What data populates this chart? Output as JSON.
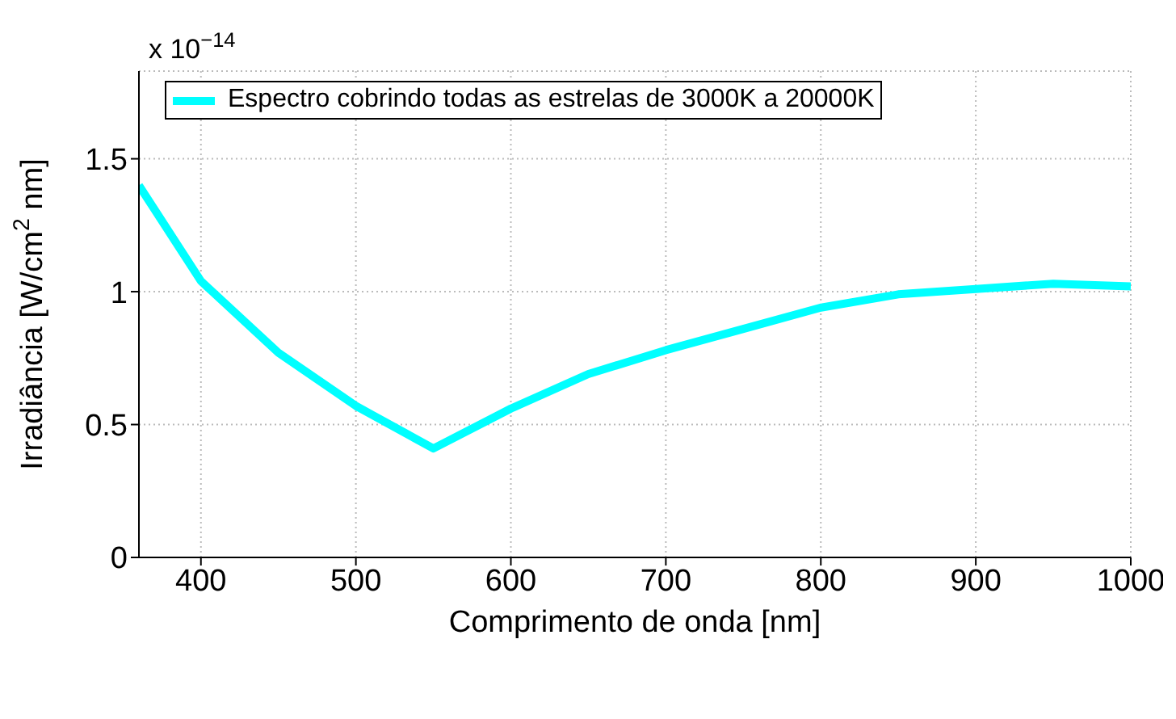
{
  "chart_data": {
    "type": "line",
    "xlabel": "Comprimento de onda [nm]",
    "ylabel": "Irradiância [W/cm$^{2}$ nm]",
    "annotations": [
      "x 10$^{−14}$"
    ],
    "x": [
      360,
      400,
      450,
      500,
      550,
      600,
      650,
      700,
      750,
      800,
      850,
      900,
      950,
      1000
    ],
    "series": [
      {
        "name": "Espectro cobrindo todas as estrelas de 3000K a 20000K",
        "color": "#00ffff",
        "values": [
          1.4,
          1.04,
          0.77,
          0.57,
          0.41,
          0.56,
          0.69,
          0.78,
          0.86,
          0.94,
          0.99,
          1.01,
          1.03,
          1.02
        ]
      }
    ],
    "xlim": [
      360,
      1000
    ],
    "xticks": [
      400,
      500,
      600,
      700,
      800,
      900,
      1000
    ],
    "ylim": [
      0,
      1.83
    ],
    "yticks": [
      0,
      0.5,
      1,
      1.5
    ],
    "grid": true,
    "legend": "top left",
    "line_style": "solid",
    "marker": "none"
  }
}
